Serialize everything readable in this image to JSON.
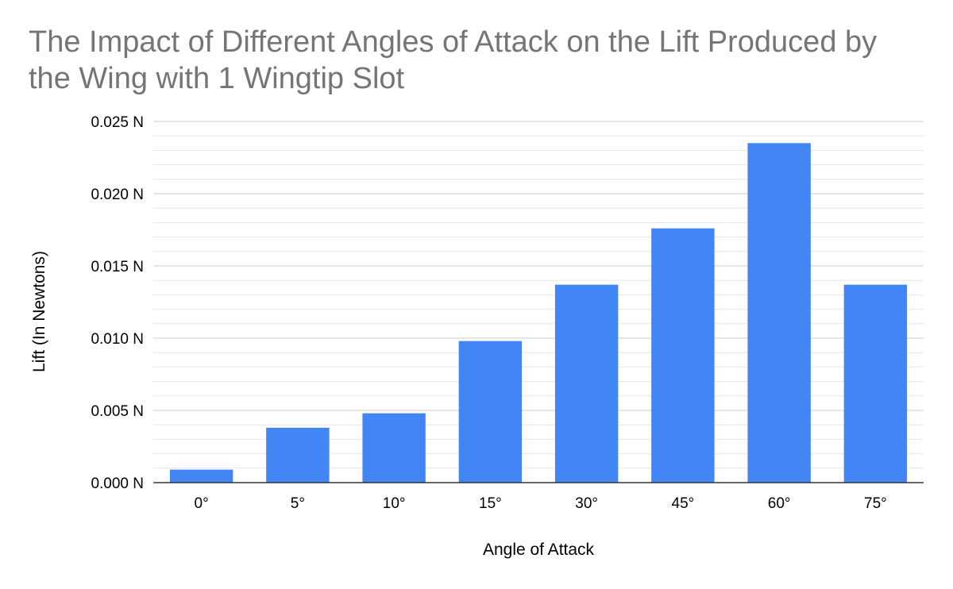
{
  "chart_data": {
    "type": "bar",
    "title": "The Impact of Different Angles of Attack on the Lift Produced by the Wing with 1 Wingtip Slot",
    "xlabel": "Angle of Attack",
    "ylabel": "Lift (In Newtons)",
    "categories": [
      "0°",
      "5°",
      "10°",
      "15°",
      "30°",
      "45°",
      "60°",
      "75°"
    ],
    "values": [
      0.0009,
      0.0038,
      0.0048,
      0.0098,
      0.0137,
      0.0176,
      0.0235,
      0.0137
    ],
    "ylim": [
      0,
      0.025
    ],
    "yticks": [
      0.0,
      0.005,
      0.01,
      0.015,
      0.02,
      0.025
    ],
    "ytick_labels": [
      "0.000 N",
      "0.005 N",
      "0.010 N",
      "0.015 N",
      "0.020 N",
      "0.025 N"
    ],
    "minor_gridlines": true,
    "grid": true,
    "legend": "none",
    "colors": {
      "bar": "#4285f4",
      "title": "#757575",
      "text": "#000000",
      "major_grid": "#cccccc",
      "minor_grid": "#e6e6e6",
      "axis": "#333333"
    }
  }
}
